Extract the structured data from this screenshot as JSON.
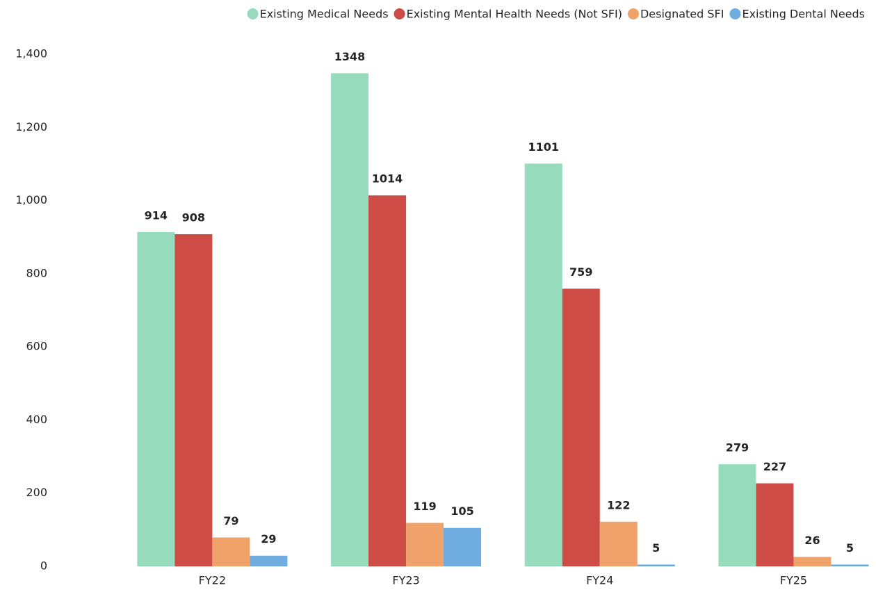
{
  "chart_data": {
    "type": "bar",
    "categories": [
      "FY22",
      "FY23",
      "FY24",
      "FY25"
    ],
    "series": [
      {
        "name": "Existing Medical Needs",
        "color": "#97dbbd",
        "values": [
          914,
          1348,
          1101,
          279
        ]
      },
      {
        "name": "Existing Mental Health Needs (Not SFI)",
        "color": "#cd4c46",
        "values": [
          908,
          1014,
          759,
          227
        ]
      },
      {
        "name": "Designated SFI",
        "color": "#efa36a",
        "values": [
          79,
          119,
          122,
          26
        ]
      },
      {
        "name": "Existing Dental Needs",
        "color": "#6fade0",
        "values": [
          29,
          105,
          5,
          5
        ]
      }
    ],
    "ylim": [
      0,
      1400
    ],
    "yticks": [
      0,
      200,
      400,
      600,
      800,
      {
        "value": 1000,
        "label": "1,000"
      },
      {
        "value": 1200,
        "label": "1,200"
      },
      {
        "value": 1400,
        "label": "1,400"
      }
    ],
    "legend": "top-right"
  }
}
